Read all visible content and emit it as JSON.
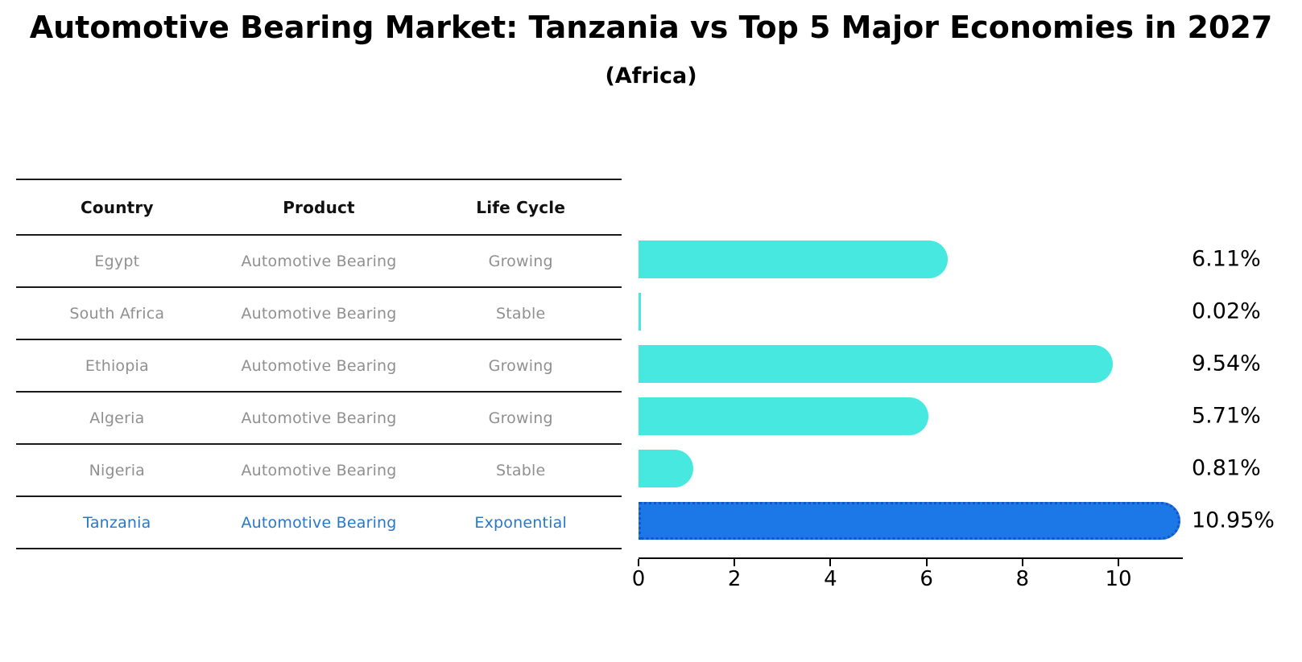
{
  "title": "Automotive Bearing Market: Tanzania vs Top 5 Major Economies in 2027",
  "subtitle": "(Africa)",
  "table": {
    "headers": [
      "Country",
      "Product",
      "Life Cycle"
    ],
    "rows": [
      {
        "country": "Egypt",
        "product": "Automotive Bearing",
        "life_cycle": "Growing",
        "highlight": false
      },
      {
        "country": "South Africa",
        "product": "Automotive Bearing",
        "life_cycle": "Stable",
        "highlight": false
      },
      {
        "country": "Ethiopia",
        "product": "Automotive Bearing",
        "life_cycle": "Growing",
        "highlight": false
      },
      {
        "country": "Algeria",
        "product": "Automotive Bearing",
        "life_cycle": "Growing",
        "highlight": false
      },
      {
        "country": "Nigeria",
        "product": "Automotive Bearing",
        "life_cycle": "Stable",
        "highlight": false
      },
      {
        "country": "Tanzania",
        "product": "Automotive Bearing",
        "life_cycle": "Exponential",
        "highlight": true
      }
    ]
  },
  "chart_data": {
    "type": "bar",
    "orientation": "horizontal",
    "title": "Automotive Bearing Market: Tanzania vs Top 5 Major Economies in 2027 (Africa)",
    "categories": [
      "Egypt",
      "South Africa",
      "Ethiopia",
      "Algeria",
      "Nigeria",
      "Tanzania"
    ],
    "values": [
      6.11,
      0.02,
      9.54,
      5.71,
      0.81,
      10.95
    ],
    "value_labels": [
      "6.11%",
      "0.02%",
      "9.54%",
      "5.71%",
      "0.81%",
      "10.95%"
    ],
    "x_ticks": [
      0,
      2,
      4,
      6,
      8,
      10
    ],
    "xlim": [
      0,
      11.34
    ],
    "grid": false,
    "legend": "none",
    "highlight_index": 5
  },
  "colors": {
    "bar": "#46e8e0",
    "highlight_bar": "#1b78e6",
    "highlight_border": "#1456c8",
    "highlight_text": "#2878ca",
    "row_text": "#909090",
    "line": "#1a1a1a"
  }
}
